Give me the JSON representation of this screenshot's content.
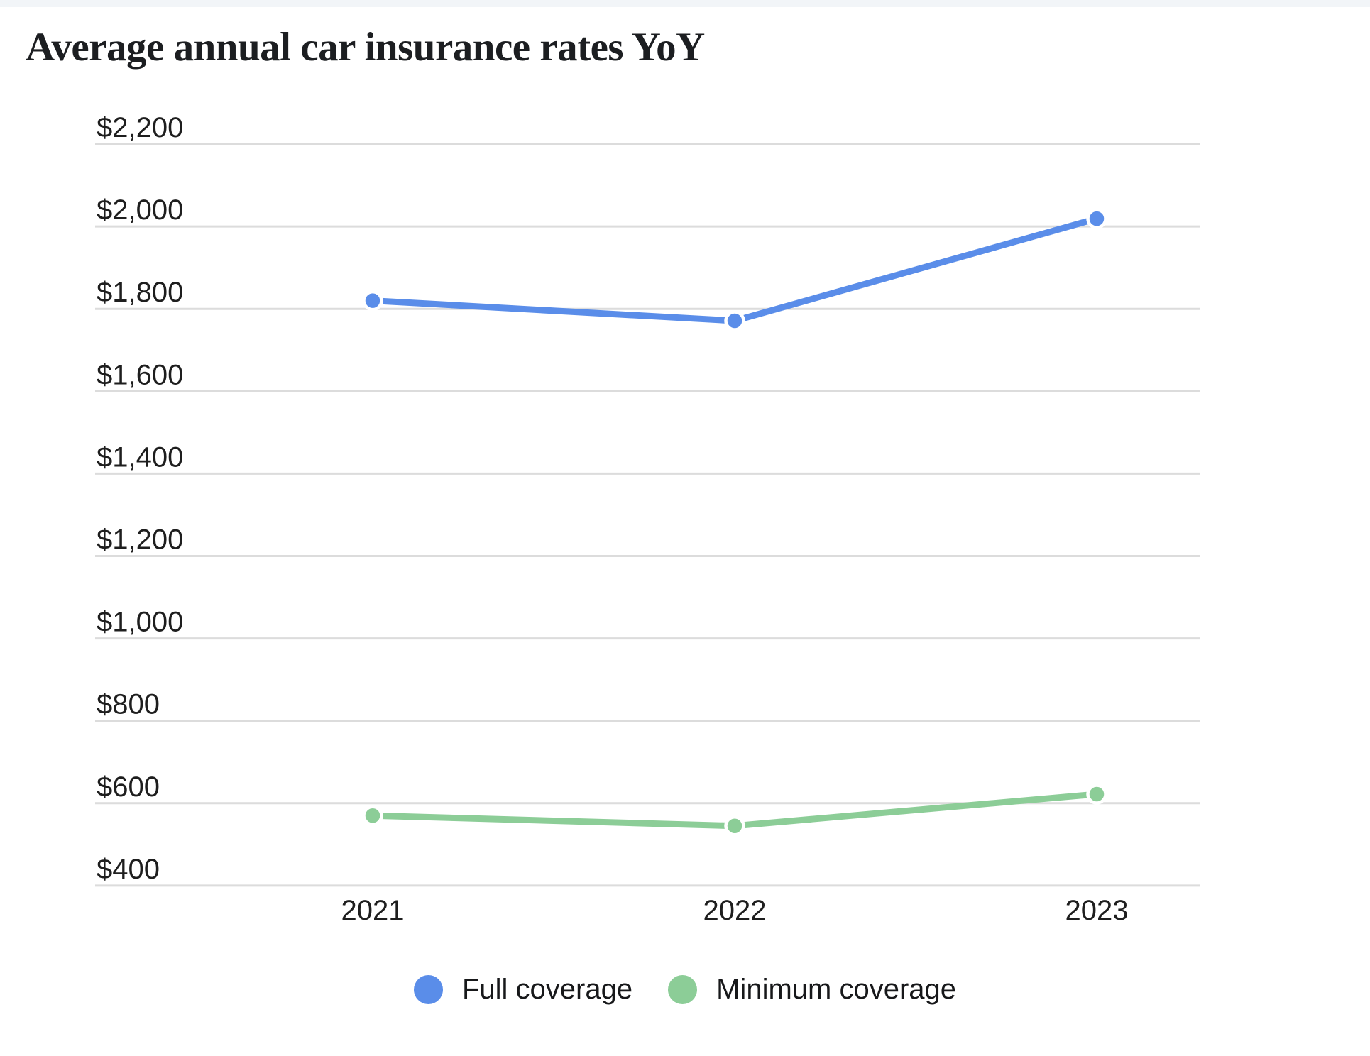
{
  "page": {
    "title": "Average annual car insurance rates YoY"
  },
  "colors": {
    "topbar_bg": "#f2f5f8",
    "gridline": "#dcdcdc",
    "axis_text": "#1e1e1e",
    "title_text": "#1c1e21",
    "full_coverage": "#5a8de9",
    "minimum_coverage": "#8ccd97",
    "point_ring": "#ffffff"
  },
  "chart_data": {
    "type": "line",
    "title": "Average annual car insurance rates YoY",
    "categories": [
      "2021",
      "2022",
      "2023"
    ],
    "series": [
      {
        "name": "Full coverage",
        "color": "#5a8de9",
        "values": [
          1820,
          1771,
          2019
        ]
      },
      {
        "name": "Minimum coverage",
        "color": "#8ccd97",
        "values": [
          570,
          545,
          622
        ]
      }
    ],
    "xlabel": "",
    "ylabel": "",
    "ylim": [
      400,
      2200
    ],
    "yticks": [
      {
        "value": 2200,
        "label": "$2,200"
      },
      {
        "value": 2000,
        "label": "$2,000"
      },
      {
        "value": 1800,
        "label": "$1,800"
      },
      {
        "value": 1600,
        "label": "$1,600"
      },
      {
        "value": 1400,
        "label": "$1,400"
      },
      {
        "value": 1200,
        "label": "$1,200"
      },
      {
        "value": 1000,
        "label": "$1,000"
      },
      {
        "value": 800,
        "label": "$800"
      },
      {
        "value": 600,
        "label": "$600"
      },
      {
        "value": 400,
        "label": "$400"
      }
    ],
    "grid": "horizontal",
    "legend_position": "bottom"
  }
}
